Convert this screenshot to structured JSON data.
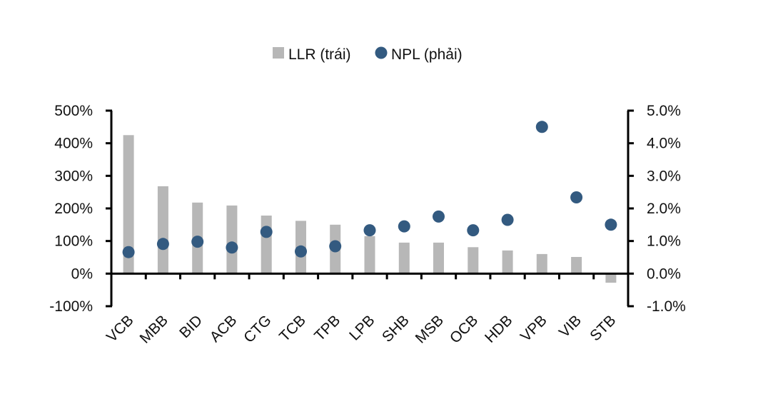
{
  "chart_data": {
    "type": "bar+scatter",
    "categories": [
      "VCB",
      "MBB",
      "BID",
      "ACB",
      "CTG",
      "TCB",
      "TPB",
      "LPB",
      "SHB",
      "MSB",
      "OCB",
      "HDB",
      "VPB",
      "VIB",
      "STB"
    ],
    "series": [
      {
        "name": "LLR (trái)",
        "type": "bar",
        "axis": "left",
        "values": [
          425,
          268,
          218,
          209,
          178,
          162,
          150,
          115,
          95,
          95,
          81,
          71,
          60,
          51,
          -28
        ]
      },
      {
        "name": "NPL (phải)",
        "type": "scatter",
        "axis": "right",
        "values": [
          0.66,
          0.91,
          0.98,
          0.8,
          1.28,
          0.68,
          0.84,
          1.33,
          1.45,
          1.75,
          1.33,
          1.65,
          4.5,
          2.34,
          1.5
        ]
      }
    ],
    "y_left": {
      "ylim": [
        -100,
        500
      ],
      "ticks": [
        -100,
        0,
        100,
        200,
        300,
        400,
        500
      ],
      "tick_labels": [
        "-100%",
        "0%",
        "100%",
        "200%",
        "300%",
        "400%",
        "500%"
      ]
    },
    "y_right": {
      "ylim": [
        -1.0,
        5.0
      ],
      "ticks": [
        -1,
        0,
        1,
        2,
        3,
        4,
        5
      ],
      "tick_labels": [
        "-1.0%",
        "0.0%",
        "1.0%",
        "2.0%",
        "3.0%",
        "4.0%",
        "5.0%"
      ]
    },
    "legend": {
      "position": "top-center"
    },
    "grid": false,
    "colors": {
      "bar": "#b7b7b7",
      "dot": "#335a80",
      "axis": "#000000"
    }
  }
}
